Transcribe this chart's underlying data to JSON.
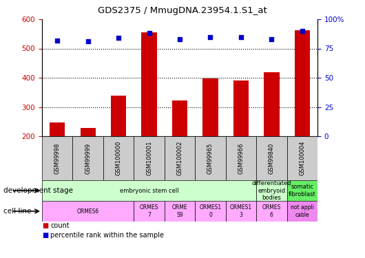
{
  "title": "GDS2375 / MmugDNA.23954.1.S1_at",
  "samples": [
    "GSM99998",
    "GSM99999",
    "GSM100000",
    "GSM100001",
    "GSM100002",
    "GSM99965",
    "GSM99966",
    "GSM99840",
    "GSM100004"
  ],
  "counts": [
    247,
    228,
    338,
    555,
    322,
    398,
    390,
    418,
    563
  ],
  "percentiles": [
    82,
    81,
    84,
    88,
    83,
    85,
    85,
    83,
    90
  ],
  "ylim_left": [
    200,
    600
  ],
  "ylim_right": [
    0,
    100
  ],
  "yticks_left": [
    200,
    300,
    400,
    500,
    600
  ],
  "yticks_right": [
    0,
    25,
    50,
    75,
    100
  ],
  "bar_color": "#cc0000",
  "dot_color": "#0000cc",
  "development_stages": [
    {
      "label": "embryonic stem cell",
      "start": 0,
      "end": 7,
      "color": "#ccffcc"
    },
    {
      "label": "differentiated\nembryoid\nbodies",
      "start": 7,
      "end": 8,
      "color": "#ccffcc"
    },
    {
      "label": "somatic\nfibroblast",
      "start": 8,
      "end": 9,
      "color": "#66ee66"
    }
  ],
  "cell_lines": [
    {
      "label": "ORMES6",
      "start": 0,
      "end": 3,
      "color": "#ffaaff"
    },
    {
      "label": "ORMES\n7",
      "start": 3,
      "end": 4,
      "color": "#ffaaff"
    },
    {
      "label": "ORME\nS9",
      "start": 4,
      "end": 5,
      "color": "#ffaaff"
    },
    {
      "label": "ORMES1\n0",
      "start": 5,
      "end": 6,
      "color": "#ffaaff"
    },
    {
      "label": "ORMES1\n3",
      "start": 6,
      "end": 7,
      "color": "#ffaaff"
    },
    {
      "label": "ORMES\n6",
      "start": 7,
      "end": 8,
      "color": "#ffaaff"
    },
    {
      "label": "not appli\ncable",
      "start": 8,
      "end": 9,
      "color": "#ee88ee"
    }
  ],
  "tick_label_color_left": "#cc0000",
  "tick_label_color_right": "#0000cc",
  "label_row1": "development stage",
  "label_row2": "cell line",
  "legend_count": "count",
  "legend_pct": "percentile rank within the sample",
  "grid_yticks": [
    300,
    400,
    500
  ],
  "samp_bg": "#cccccc"
}
